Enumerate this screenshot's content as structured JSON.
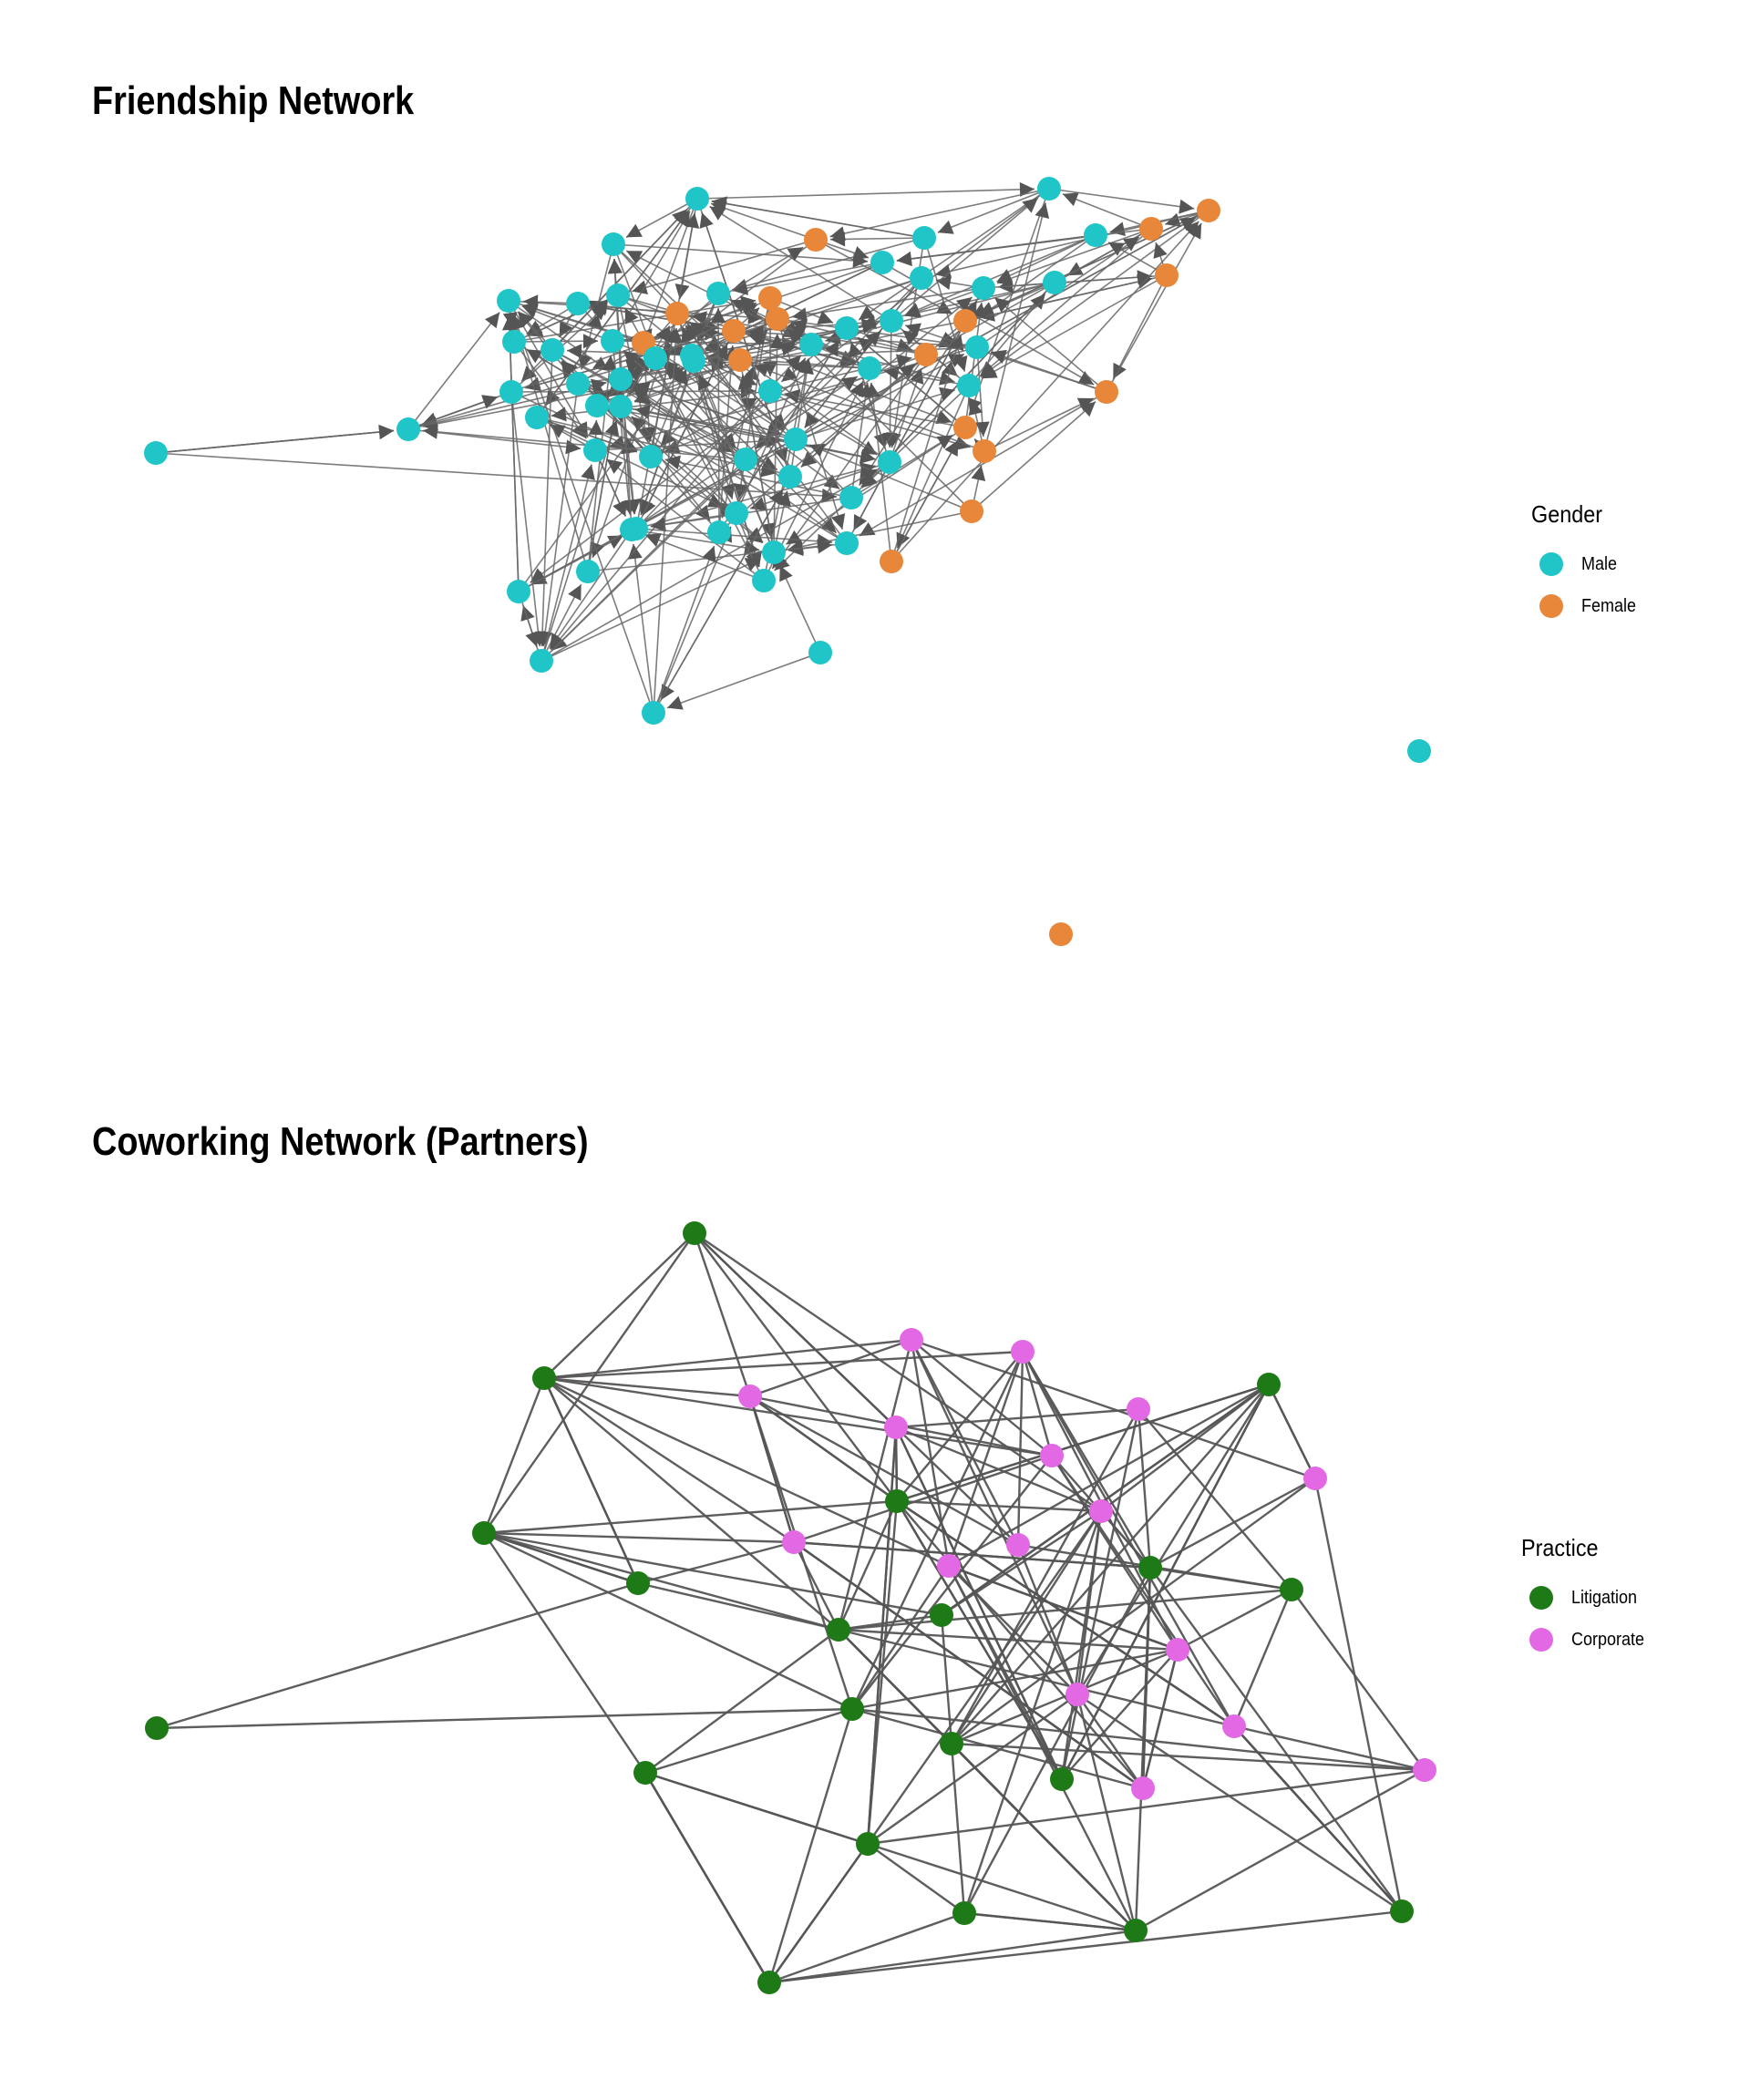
{
  "friendship": {
    "title": "Friendship Network",
    "legend": {
      "title": "Gender",
      "items": [
        {
          "label": "Male",
          "color": "#20C5C8"
        },
        {
          "label": "Female",
          "color": "#E8873A"
        }
      ]
    }
  },
  "coworking": {
    "title": "Coworking Network (Partners)",
    "legend": {
      "title": "Practice",
      "items": [
        {
          "label": "Litigation",
          "color": "#1E7A16"
        },
        {
          "label": "Corporate",
          "color": "#E269E3"
        }
      ]
    }
  },
  "colors": {
    "edge": "#555555",
    "edge_arrow": "#666666"
  }
}
